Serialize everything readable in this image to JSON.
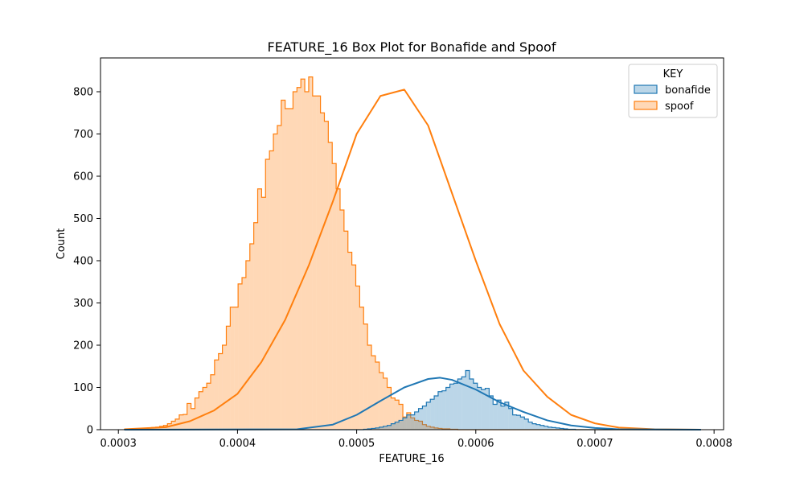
{
  "chart_data": {
    "type": "histogram",
    "title": "FEATURE_16 Box Plot for Bonafide and Spoof",
    "xlabel": "FEATURE_16",
    "ylabel": "Count",
    "xlim": [
      0.000285,
      0.000808
    ],
    "ylim": [
      0,
      880
    ],
    "x_ticks": [
      0.0003,
      0.0004,
      0.0005,
      0.0006,
      0.0007,
      0.0008
    ],
    "x_tick_labels": [
      "0.0003",
      "0.0004",
      "0.0005",
      "0.0006",
      "0.0007",
      "0.0008"
    ],
    "y_ticks": [
      0,
      100,
      200,
      300,
      400,
      500,
      600,
      700,
      800
    ],
    "y_tick_labels": [
      "0",
      "100",
      "200",
      "300",
      "400",
      "500",
      "600",
      "700",
      "800"
    ],
    "grid": false,
    "legend": {
      "title": "KEY",
      "placement": "top-right"
    },
    "kde": true,
    "bin_range": [
      0.000305,
      0.000789
    ],
    "series": [
      {
        "name": "bonafide",
        "color": "#1f77b4",
        "counts": [
          0,
          0,
          0,
          0,
          0,
          0,
          0,
          0,
          0,
          0,
          0,
          0,
          0,
          0,
          0,
          0,
          0,
          0,
          0,
          0,
          0,
          0,
          0,
          0,
          0,
          0,
          0,
          0,
          0,
          0,
          0,
          0,
          0,
          0,
          0,
          0,
          0,
          0,
          0,
          0,
          0,
          0,
          0,
          0,
          0,
          0,
          0,
          0,
          0,
          0,
          0,
          0,
          0,
          0,
          0,
          0,
          0,
          0,
          0,
          0,
          0,
          1,
          2,
          3,
          4,
          6,
          8,
          10,
          14,
          18,
          22,
          28,
          35,
          35,
          42,
          50,
          56,
          65,
          72,
          80,
          90,
          92,
          100,
          108,
          110,
          120,
          125,
          140,
          120,
          110,
          100,
          95,
          98,
          80,
          60,
          70,
          56,
          65,
          50,
          35,
          34,
          30,
          25,
          18,
          14,
          12,
          10,
          8,
          6,
          5,
          4,
          3,
          2,
          1,
          1,
          0,
          0,
          0,
          0,
          0,
          0,
          0,
          0,
          0,
          0,
          0,
          0,
          0,
          0,
          0,
          0,
          0,
          0,
          0,
          0,
          0,
          0,
          0,
          0,
          0,
          0,
          0,
          0,
          0,
          0,
          0,
          0
        ],
        "kde": [
          [
            0.000305,
            0
          ],
          [
            0.00045,
            1
          ],
          [
            0.00048,
            12
          ],
          [
            0.0005,
            35
          ],
          [
            0.00052,
            68
          ],
          [
            0.00054,
            100
          ],
          [
            0.00056,
            120
          ],
          [
            0.00057,
            123
          ],
          [
            0.00058,
            118
          ],
          [
            0.0006,
            95
          ],
          [
            0.00062,
            65
          ],
          [
            0.00064,
            42
          ],
          [
            0.00066,
            22
          ],
          [
            0.00068,
            10
          ],
          [
            0.0007,
            4
          ],
          [
            0.00072,
            1
          ],
          [
            0.000789,
            0
          ]
        ]
      },
      {
        "name": "spoof",
        "color": "#ff7f0e",
        "counts": [
          1,
          1,
          2,
          2,
          3,
          3,
          4,
          5,
          6,
          8,
          10,
          14,
          20,
          25,
          35,
          36,
          62,
          50,
          75,
          90,
          100,
          110,
          130,
          165,
          180,
          200,
          245,
          290,
          290,
          345,
          360,
          400,
          440,
          490,
          570,
          550,
          640,
          660,
          700,
          720,
          780,
          760,
          760,
          800,
          810,
          830,
          800,
          835,
          790,
          790,
          750,
          730,
          680,
          630,
          570,
          520,
          470,
          420,
          390,
          340,
          290,
          250,
          200,
          175,
          160,
          135,
          122,
          100,
          75,
          70,
          60,
          30,
          40,
          28,
          22,
          20,
          12,
          8,
          6,
          4,
          3,
          2,
          2,
          1,
          1,
          0,
          0,
          0,
          0,
          0,
          0,
          0,
          0,
          0,
          0,
          0,
          0,
          0,
          0,
          0,
          0,
          0,
          0,
          0,
          0,
          0,
          0,
          0,
          0,
          0,
          0,
          0,
          0,
          0,
          0,
          0,
          0,
          0,
          0,
          0,
          0,
          0,
          0,
          0,
          0,
          0,
          0,
          0,
          0,
          0,
          0,
          0,
          0,
          0,
          0,
          0,
          0,
          0,
          0,
          0,
          0,
          0,
          0,
          0,
          0,
          0,
          0
        ],
        "kde": [
          [
            0.000305,
            1
          ],
          [
            0.00034,
            6
          ],
          [
            0.00036,
            20
          ],
          [
            0.00038,
            45
          ],
          [
            0.0004,
            85
          ],
          [
            0.00042,
            160
          ],
          [
            0.00044,
            260
          ],
          [
            0.00046,
            390
          ],
          [
            0.00048,
            540
          ],
          [
            0.0005,
            700
          ],
          [
            0.00052,
            790
          ],
          [
            0.00054,
            805
          ],
          [
            0.00056,
            720
          ],
          [
            0.00058,
            560
          ],
          [
            0.0006,
            400
          ],
          [
            0.00062,
            250
          ],
          [
            0.00064,
            140
          ],
          [
            0.00066,
            78
          ],
          [
            0.00068,
            35
          ],
          [
            0.0007,
            15
          ],
          [
            0.00072,
            5
          ],
          [
            0.00075,
            1
          ],
          [
            0.000789,
            0
          ]
        ]
      }
    ]
  }
}
